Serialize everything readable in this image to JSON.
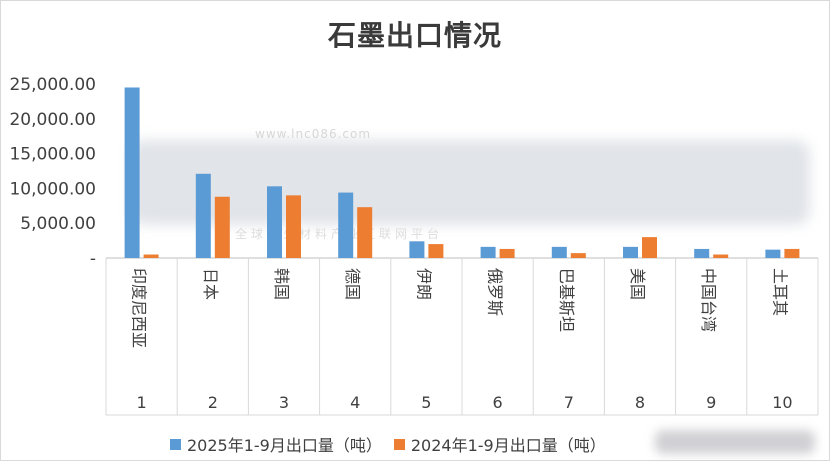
{
  "chart_data": {
    "type": "bar",
    "title": "石墨出口情况",
    "categories": [
      "印度尼西亚",
      "日本",
      "韩国",
      "德国",
      "伊朗",
      "俄罗斯",
      "巴基斯坦",
      "美国",
      "中国台湾",
      "土耳其"
    ],
    "rank_labels": [
      "1",
      "2",
      "3",
      "4",
      "5",
      "6",
      "7",
      "8",
      "9",
      "10"
    ],
    "series": [
      {
        "name": "2025年1-9月出口量（吨）",
        "color": "#5b9bd5",
        "values": [
          24500,
          12100,
          10300,
          9400,
          2400,
          1600,
          1600,
          1600,
          1300,
          1200
        ]
      },
      {
        "name": "2024年1-9月出口量（吨）",
        "color": "#ed7d31",
        "values": [
          500,
          8800,
          9000,
          7300,
          2000,
          1300,
          700,
          3000,
          500,
          1300
        ]
      }
    ],
    "yticks": [
      "-",
      "5,000.00",
      "10,000.00",
      "15,000.00",
      "20,000.00",
      "25,000.00"
    ],
    "ylim": [
      0,
      25000
    ],
    "legend_position": "bottom",
    "grid": false
  },
  "watermark": {
    "url": "www.lnc086.com",
    "subtitle": "全球耐火材料产业互联网平台"
  }
}
